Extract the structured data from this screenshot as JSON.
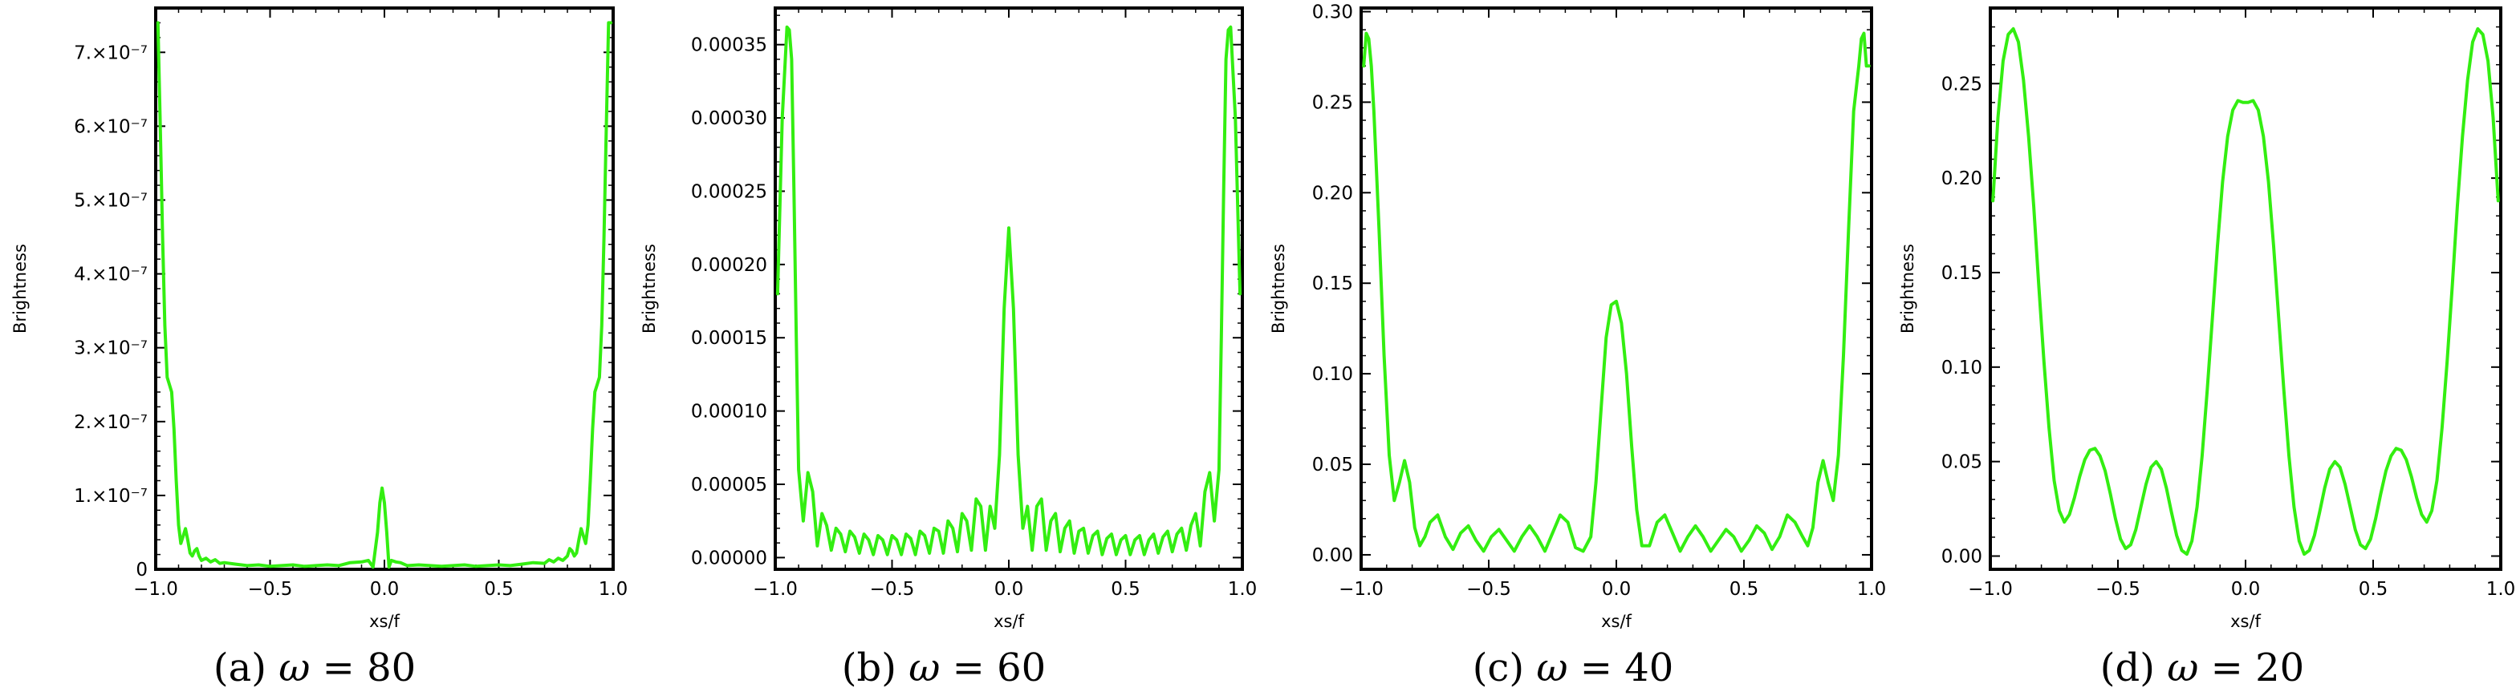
{
  "chart_data": [
    {
      "type": "line",
      "caption_prefix": "(a)",
      "caption_omega": "ω",
      "caption_value": "= 80",
      "xlabel": "xs/f",
      "ylabel": "Brightness",
      "xlim": [
        -1.0,
        1.0
      ],
      "ylim": [
        0,
        7.6e-07
      ],
      "xticks": [
        -1.0,
        -0.5,
        0.0,
        0.5,
        1.0
      ],
      "xtick_labels": [
        "−1.0",
        "−0.5",
        "0.0",
        "0.5",
        "1.0"
      ],
      "yticks": [
        0,
        1e-07,
        2e-07,
        3e-07,
        4e-07,
        5e-07,
        6e-07,
        7e-07
      ],
      "ytick_labels": [
        "0",
        "1.×10⁻⁷",
        "2.×10⁻⁷",
        "3.×10⁻⁷",
        "4.×10⁻⁷",
        "5.×10⁻⁷",
        "6.×10⁻⁷",
        "7.×10⁻⁷"
      ],
      "series": [
        {
          "color": "#33ee11",
          "x": [
            -0.99,
            -0.98,
            -0.97,
            -0.96,
            -0.95,
            -0.94,
            -0.93,
            -0.92,
            -0.91,
            -0.9,
            -0.89,
            -0.88,
            -0.87,
            -0.86,
            -0.85,
            -0.84,
            -0.83,
            -0.82,
            -0.81,
            -0.8,
            -0.78,
            -0.76,
            -0.74,
            -0.72,
            -0.7,
            -0.65,
            -0.6,
            -0.55,
            -0.5,
            -0.45,
            -0.4,
            -0.35,
            -0.3,
            -0.25,
            -0.2,
            -0.15,
            -0.1,
            -0.07,
            -0.05,
            -0.03,
            -0.02,
            -0.01,
            0.0,
            0.01,
            0.02,
            0.03,
            0.05,
            0.07,
            0.1,
            0.15,
            0.2,
            0.25,
            0.3,
            0.35,
            0.4,
            0.45,
            0.5,
            0.55,
            0.6,
            0.65,
            0.7,
            0.72,
            0.74,
            0.76,
            0.78,
            0.8,
            0.81,
            0.82,
            0.83,
            0.84,
            0.85,
            0.86,
            0.87,
            0.88,
            0.89,
            0.9,
            0.91,
            0.92,
            0.93,
            0.94,
            0.95,
            0.96,
            0.97,
            0.98,
            0.99
          ],
          "y": [
            7.4e-07,
            6e-07,
            4.5e-07,
            3.3e-07,
            2.6e-07,
            2.5e-07,
            2.4e-07,
            1.9e-07,
            1.2e-07,
            6e-08,
            3.5e-08,
            4.5e-08,
            5.5e-08,
            4e-08,
            2.2e-08,
            1.8e-08,
            2.5e-08,
            2.8e-08,
            1.8e-08,
            1.2e-08,
            1.5e-08,
            1e-08,
            1.3e-08,
            8e-09,
            9e-09,
            7e-09,
            5e-09,
            6e-09,
            4e-09,
            5e-09,
            6e-09,
            4e-09,
            5e-09,
            6e-09,
            5e-09,
            9e-09,
            1e-08,
            1.2e-08,
            3e-09,
            5e-08,
            9e-08,
            1.1e-07,
            9e-08,
            5e-08,
            3e-09,
            1.2e-08,
            1e-08,
            9e-09,
            5e-09,
            6e-09,
            5e-09,
            4e-09,
            5e-09,
            6e-09,
            4e-09,
            5e-09,
            6e-09,
            5e-09,
            7e-09,
            9e-09,
            8e-09,
            1.3e-08,
            1e-08,
            1.5e-08,
            1.2e-08,
            1.8e-08,
            2.8e-08,
            2.5e-08,
            1.8e-08,
            2.2e-08,
            4e-08,
            5.5e-08,
            4.5e-08,
            3.5e-08,
            6e-08,
            1.2e-07,
            1.9e-07,
            2.4e-07,
            2.5e-07,
            2.6e-07,
            3.3e-07,
            4.5e-07,
            6e-07,
            7.4e-07,
            7.4e-07
          ]
        }
      ]
    },
    {
      "type": "line",
      "caption_prefix": "(b)",
      "caption_omega": "ω",
      "caption_value": "= 60",
      "xlabel": "xs/f",
      "ylabel": "Brightness",
      "xlim": [
        -1.0,
        1.0
      ],
      "ylim": [
        -8e-06,
        0.000375
      ],
      "xticks": [
        -1.0,
        -0.5,
        0.0,
        0.5,
        1.0
      ],
      "xtick_labels": [
        "−1.0",
        "−0.5",
        "0.0",
        "0.5",
        "1.0"
      ],
      "yticks": [
        0,
        5e-05,
        0.0001,
        0.00015,
        0.0002,
        0.00025,
        0.0003,
        0.00035
      ],
      "ytick_labels": [
        "0.00000",
        "0.00005",
        "0.00010",
        "0.00015",
        "0.00020",
        "0.00025",
        "0.00030",
        "0.00035"
      ],
      "series": [
        {
          "color": "#33ee11",
          "x": [
            -0.99,
            -0.97,
            -0.95,
            -0.94,
            -0.93,
            -0.92,
            -0.91,
            -0.9,
            -0.88,
            -0.86,
            -0.84,
            -0.82,
            -0.8,
            -0.78,
            -0.76,
            -0.74,
            -0.72,
            -0.7,
            -0.68,
            -0.66,
            -0.64,
            -0.62,
            -0.6,
            -0.58,
            -0.56,
            -0.54,
            -0.52,
            -0.5,
            -0.48,
            -0.46,
            -0.44,
            -0.42,
            -0.4,
            -0.38,
            -0.36,
            -0.34,
            -0.32,
            -0.3,
            -0.28,
            -0.26,
            -0.24,
            -0.22,
            -0.2,
            -0.18,
            -0.16,
            -0.14,
            -0.12,
            -0.1,
            -0.08,
            -0.06,
            -0.04,
            -0.02,
            0.0,
            0.02,
            0.04,
            0.06,
            0.08,
            0.1,
            0.12,
            0.14,
            0.16,
            0.18,
            0.2,
            0.22,
            0.24,
            0.26,
            0.28,
            0.3,
            0.32,
            0.34,
            0.36,
            0.38,
            0.4,
            0.42,
            0.44,
            0.46,
            0.48,
            0.5,
            0.52,
            0.54,
            0.56,
            0.58,
            0.6,
            0.62,
            0.64,
            0.66,
            0.68,
            0.7,
            0.72,
            0.74,
            0.76,
            0.78,
            0.8,
            0.82,
            0.84,
            0.86,
            0.88,
            0.9,
            0.91,
            0.92,
            0.93,
            0.94,
            0.95,
            0.97,
            0.99
          ],
          "y": [
            0.00018,
            0.0003,
            0.000362,
            0.00036,
            0.00034,
            0.00025,
            0.00015,
            6e-05,
            2.5e-05,
            5.8e-05,
            4.5e-05,
            8e-06,
            3e-05,
            2.2e-05,
            5e-06,
            2e-05,
            1.6e-05,
            4e-06,
            1.8e-05,
            1.4e-05,
            3e-06,
            1.6e-05,
            1.2e-05,
            2e-06,
            1.5e-05,
            1.2e-05,
            2e-06,
            1.5e-05,
            1.2e-05,
            2e-06,
            1.6e-05,
            1.3e-05,
            2e-06,
            1.8e-05,
            1.5e-05,
            3e-06,
            2e-05,
            1.8e-05,
            3e-06,
            2.5e-05,
            2e-05,
            4e-06,
            3e-05,
            2.5e-05,
            5e-06,
            4e-05,
            3.5e-05,
            5e-06,
            3.5e-05,
            2e-05,
            7e-05,
            0.00017,
            0.000225,
            0.00017,
            7e-05,
            2e-05,
            3.5e-05,
            5e-06,
            3.5e-05,
            4e-05,
            5e-06,
            2.5e-05,
            3e-05,
            4e-06,
            2e-05,
            2.5e-05,
            3e-06,
            1.8e-05,
            2e-05,
            3e-06,
            1.5e-05,
            1.8e-05,
            2e-06,
            1.3e-05,
            1.6e-05,
            2e-06,
            1.2e-05,
            1.5e-05,
            2e-06,
            1.2e-05,
            1.5e-05,
            2e-06,
            1.2e-05,
            1.6e-05,
            3e-06,
            1.4e-05,
            1.8e-05,
            4e-06,
            1.6e-05,
            2e-05,
            5e-06,
            2.2e-05,
            3e-05,
            8e-06,
            4.5e-05,
            5.8e-05,
            2.5e-05,
            6e-05,
            0.00015,
            0.00025,
            0.00034,
            0.00036,
            0.000362,
            0.0003,
            0.00018
          ]
        }
      ]
    },
    {
      "type": "line",
      "caption_prefix": "(c)",
      "caption_omega": "ω",
      "caption_value": "= 40",
      "xlabel": "xs/f",
      "ylabel": "Brightness",
      "xlim": [
        -1.0,
        1.0
      ],
      "ylim": [
        -0.008,
        0.302
      ],
      "xticks": [
        -1.0,
        -0.5,
        0.0,
        0.5,
        1.0
      ],
      "xtick_labels": [
        "−1.0",
        "−0.5",
        "0.0",
        "0.5",
        "1.0"
      ],
      "yticks": [
        0,
        0.05,
        0.1,
        0.15,
        0.2,
        0.25,
        0.3
      ],
      "ytick_labels": [
        "0.00",
        "0.05",
        "0.10",
        "0.15",
        "0.20",
        "0.25",
        "0.30"
      ],
      "series": [
        {
          "color": "#33ee11",
          "x": [
            -0.99,
            -0.98,
            -0.97,
            -0.96,
            -0.95,
            -0.93,
            -0.91,
            -0.89,
            -0.87,
            -0.85,
            -0.83,
            -0.81,
            -0.79,
            -0.77,
            -0.75,
            -0.73,
            -0.7,
            -0.67,
            -0.64,
            -0.61,
            -0.58,
            -0.55,
            -0.52,
            -0.49,
            -0.46,
            -0.43,
            -0.4,
            -0.37,
            -0.34,
            -0.31,
            -0.28,
            -0.25,
            -0.22,
            -0.19,
            -0.16,
            -0.13,
            -0.1,
            -0.08,
            -0.06,
            -0.04,
            -0.02,
            0.0,
            0.02,
            0.04,
            0.06,
            0.08,
            0.1,
            0.13,
            0.16,
            0.19,
            0.22,
            0.25,
            0.28,
            0.31,
            0.34,
            0.37,
            0.4,
            0.43,
            0.46,
            0.49,
            0.52,
            0.55,
            0.58,
            0.61,
            0.64,
            0.67,
            0.7,
            0.73,
            0.75,
            0.77,
            0.79,
            0.81,
            0.83,
            0.85,
            0.87,
            0.89,
            0.91,
            0.93,
            0.95,
            0.96,
            0.97,
            0.98,
            0.99
          ],
          "y": [
            0.27,
            0.288,
            0.285,
            0.27,
            0.245,
            0.18,
            0.11,
            0.055,
            0.03,
            0.04,
            0.052,
            0.04,
            0.015,
            0.005,
            0.01,
            0.018,
            0.022,
            0.01,
            0.003,
            0.012,
            0.016,
            0.008,
            0.002,
            0.01,
            0.014,
            0.008,
            0.002,
            0.01,
            0.016,
            0.01,
            0.002,
            0.012,
            0.022,
            0.018,
            0.004,
            0.002,
            0.01,
            0.04,
            0.08,
            0.12,
            0.138,
            0.14,
            0.128,
            0.1,
            0.06,
            0.025,
            0.005,
            0.005,
            0.018,
            0.022,
            0.012,
            0.002,
            0.01,
            0.016,
            0.01,
            0.002,
            0.008,
            0.014,
            0.01,
            0.002,
            0.008,
            0.016,
            0.012,
            0.003,
            0.01,
            0.022,
            0.018,
            0.01,
            0.005,
            0.015,
            0.04,
            0.052,
            0.04,
            0.03,
            0.055,
            0.11,
            0.18,
            0.245,
            0.27,
            0.285,
            0.288,
            0.27,
            0.27
          ]
        }
      ]
    },
    {
      "type": "line",
      "caption_prefix": "(d)",
      "caption_omega": "ω",
      "caption_value": "= 20",
      "xlabel": "xs/f",
      "ylabel": "Brightness",
      "xlim": [
        -1.0,
        1.0
      ],
      "ylim": [
        -0.007,
        0.29
      ],
      "xticks": [
        -1.0,
        -0.5,
        0.0,
        0.5,
        1.0
      ],
      "xtick_labels": [
        "−1.0",
        "−0.5",
        "0.0",
        "0.5",
        "1.0"
      ],
      "yticks": [
        0,
        0.05,
        0.1,
        0.15,
        0.2,
        0.25
      ],
      "ytick_labels": [
        "0.00",
        "0.05",
        "0.10",
        "0.15",
        "0.20",
        "0.25"
      ],
      "series": [
        {
          "color": "#33ee11",
          "x": [
            -0.99,
            -0.97,
            -0.95,
            -0.93,
            -0.91,
            -0.89,
            -0.87,
            -0.85,
            -0.83,
            -0.81,
            -0.79,
            -0.77,
            -0.75,
            -0.73,
            -0.71,
            -0.69,
            -0.67,
            -0.65,
            -0.63,
            -0.61,
            -0.59,
            -0.57,
            -0.55,
            -0.53,
            -0.51,
            -0.49,
            -0.47,
            -0.45,
            -0.43,
            -0.41,
            -0.39,
            -0.37,
            -0.35,
            -0.33,
            -0.31,
            -0.29,
            -0.27,
            -0.25,
            -0.23,
            -0.21,
            -0.19,
            -0.17,
            -0.15,
            -0.13,
            -0.11,
            -0.09,
            -0.07,
            -0.05,
            -0.03,
            -0.01,
            0.0,
            0.01,
            0.03,
            0.05,
            0.07,
            0.09,
            0.11,
            0.13,
            0.15,
            0.17,
            0.19,
            0.21,
            0.23,
            0.25,
            0.27,
            0.29,
            0.31,
            0.33,
            0.35,
            0.37,
            0.39,
            0.41,
            0.43,
            0.45,
            0.47,
            0.49,
            0.51,
            0.53,
            0.55,
            0.57,
            0.59,
            0.61,
            0.63,
            0.65,
            0.67,
            0.69,
            0.71,
            0.73,
            0.75,
            0.77,
            0.79,
            0.81,
            0.83,
            0.85,
            0.87,
            0.89,
            0.91,
            0.93,
            0.95,
            0.97,
            0.99
          ],
          "y": [
            0.188,
            0.232,
            0.262,
            0.276,
            0.279,
            0.272,
            0.252,
            0.222,
            0.185,
            0.143,
            0.103,
            0.068,
            0.04,
            0.024,
            0.018,
            0.022,
            0.031,
            0.042,
            0.051,
            0.056,
            0.057,
            0.053,
            0.045,
            0.033,
            0.02,
            0.009,
            0.004,
            0.006,
            0.014,
            0.026,
            0.038,
            0.047,
            0.05,
            0.046,
            0.036,
            0.023,
            0.011,
            0.003,
            0.001,
            0.008,
            0.026,
            0.053,
            0.088,
            0.126,
            0.164,
            0.198,
            0.222,
            0.236,
            0.241,
            0.24,
            0.24,
            0.24,
            0.241,
            0.236,
            0.222,
            0.198,
            0.164,
            0.126,
            0.088,
            0.053,
            0.026,
            0.008,
            0.001,
            0.003,
            0.011,
            0.023,
            0.036,
            0.046,
            0.05,
            0.047,
            0.038,
            0.026,
            0.014,
            0.006,
            0.004,
            0.009,
            0.02,
            0.033,
            0.045,
            0.053,
            0.057,
            0.056,
            0.051,
            0.042,
            0.031,
            0.022,
            0.018,
            0.024,
            0.04,
            0.068,
            0.103,
            0.143,
            0.185,
            0.222,
            0.252,
            0.272,
            0.279,
            0.276,
            0.262,
            0.232,
            0.188
          ]
        }
      ]
    }
  ]
}
